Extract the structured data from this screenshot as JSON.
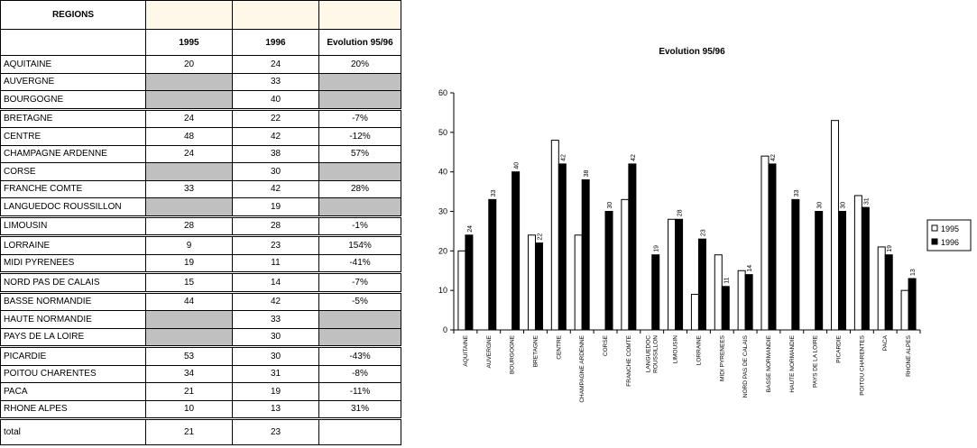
{
  "table": {
    "header_regions": "REGIONS",
    "col_1995": "1995",
    "col_1996": "1996",
    "col_evolution": "Evolution 95/96",
    "rows": [
      {
        "region": "AQUITAINE",
        "v1995": "20",
        "v1996": "24",
        "evo": "20%",
        "grey": false
      },
      {
        "region": "AUVERGNE",
        "v1995": "",
        "v1996": "33",
        "evo": "",
        "grey": true
      },
      {
        "region": "BOURGOGNE",
        "v1995": "",
        "v1996": "40",
        "evo": "",
        "grey": true
      },
      {
        "region": "BRETAGNE",
        "v1995": "24",
        "v1996": "22",
        "evo": "-7%",
        "grey": false
      },
      {
        "region": "CENTRE",
        "v1995": "48",
        "v1996": "42",
        "evo": "-12%",
        "grey": false
      },
      {
        "region": "CHAMPAGNE ARDENNE",
        "v1995": "24",
        "v1996": "38",
        "evo": "57%",
        "grey": false
      },
      {
        "region": "CORSE",
        "v1995": "",
        "v1996": "30",
        "evo": "",
        "grey": true
      },
      {
        "region": "FRANCHE COMTE",
        "v1995": "33",
        "v1996": "42",
        "evo": "28%",
        "grey": false
      },
      {
        "region": "LANGUEDOC ROUSSILLON",
        "v1995": "",
        "v1996": "19",
        "evo": "",
        "grey": true
      },
      {
        "region": "LIMOUSIN",
        "v1995": "28",
        "v1996": "28",
        "evo": "-1%",
        "grey": false
      },
      {
        "region": "LORRAINE",
        "v1995": "9",
        "v1996": "23",
        "evo": "154%",
        "grey": false
      },
      {
        "region": "MIDI PYRENEES",
        "v1995": "19",
        "v1996": "11",
        "evo": "-41%",
        "grey": false
      },
      {
        "region": "NORD PAS DE CALAIS",
        "v1995": "15",
        "v1996": "14",
        "evo": "-7%",
        "grey": false
      },
      {
        "region": "BASSE NORMANDIE",
        "v1995": "44",
        "v1996": "42",
        "evo": "-5%",
        "grey": false
      },
      {
        "region": "HAUTE NORMANDIE",
        "v1995": "",
        "v1996": "33",
        "evo": "",
        "grey": true
      },
      {
        "region": "PAYS DE LA LOIRE",
        "v1995": "",
        "v1996": "30",
        "evo": "",
        "grey": true
      },
      {
        "region": "PICARDIE",
        "v1995": "53",
        "v1996": "30",
        "evo": "-43%",
        "grey": false
      },
      {
        "region": "POITOU CHARENTES",
        "v1995": "34",
        "v1996": "31",
        "evo": "-8%",
        "grey": false
      },
      {
        "region": "PACA",
        "v1995": "21",
        "v1996": "19",
        "evo": "-11%",
        "grey": false
      },
      {
        "region": "RHONE ALPES",
        "v1995": "10",
        "v1996": "13",
        "evo": "31%",
        "grey": false
      }
    ],
    "total": {
      "label": "total",
      "v1995": "21",
      "v1996": "23",
      "evo": ""
    }
  },
  "chart_data": {
    "type": "bar",
    "title": "Evolution 95/96",
    "categories": [
      "AQUITAINE",
      "AUVERGNE",
      "BOURGOGNE",
      "BRETAGNE",
      "CENTRE",
      "CHAMPAGNE ARDENNE",
      "CORSE",
      "FRANCHE COMTE",
      "LANGUEDOC ROUSSILLON",
      "LIMOUSIN",
      "LORRAINE",
      "MIDI PYRENEES",
      "NORD PAS DE CALAIS",
      "BASSE NORMANDIE",
      "HAUTE NORMANDIE",
      "PAYS DE LA LOIRE",
      "PICARDIE",
      "POITOU CHARENTES",
      "PACA",
      "RHONE ALPES"
    ],
    "series": [
      {
        "name": "1995",
        "color": "#ffffff",
        "values": [
          20,
          null,
          null,
          24,
          48,
          24,
          null,
          33,
          null,
          28,
          9,
          19,
          15,
          44,
          null,
          null,
          53,
          34,
          21,
          10
        ]
      },
      {
        "name": "1996",
        "color": "#000000",
        "values": [
          24,
          33,
          40,
          22,
          42,
          38,
          30,
          42,
          19,
          28,
          23,
          11,
          14,
          42,
          33,
          30,
          30,
          31,
          19,
          13
        ]
      }
    ],
    "ylim": [
      0,
      60
    ],
    "yticks": [
      0,
      10,
      20,
      30,
      40,
      50,
      60
    ],
    "legend_position": "right",
    "grid": false,
    "data_labels_series": "1996"
  }
}
